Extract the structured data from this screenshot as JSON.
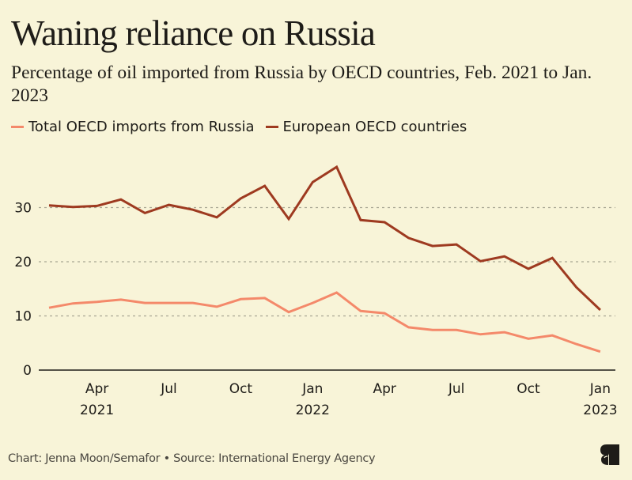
{
  "header": {
    "title": "Waning reliance on Russia",
    "subtitle": "Percentage of oil imported from Russia by OECD countries, Feb. 2021 to Jan. 2023"
  },
  "legend": [
    {
      "label": "Total OECD imports from Russia",
      "color": "#f4896a"
    },
    {
      "label": "European OECD countries",
      "color": "#9e3a20"
    }
  ],
  "footer": {
    "credit": "Chart: Jenna Moon/Semafor • Source: International Energy Agency",
    "logo": "semafor-logo"
  },
  "chart_data": {
    "type": "line",
    "title": "Waning reliance on Russia",
    "subtitle": "Percentage of oil imported from Russia by OECD countries, Feb. 2021 to Jan. 2023",
    "xlabel": "",
    "ylabel": "",
    "x": [
      "Feb 2021",
      "Mar 2021",
      "Apr 2021",
      "May 2021",
      "Jun 2021",
      "Jul 2021",
      "Aug 2021",
      "Sep 2021",
      "Oct 2021",
      "Nov 2021",
      "Dec 2021",
      "Jan 2022",
      "Feb 2022",
      "Mar 2022",
      "Apr 2022",
      "May 2022",
      "Jun 2022",
      "Jul 2022",
      "Aug 2022",
      "Sep 2022",
      "Oct 2022",
      "Nov 2022",
      "Dec 2022",
      "Jan 2023"
    ],
    "series": [
      {
        "name": "Total OECD imports from Russia",
        "color": "#f4896a",
        "values": [
          11.5,
          12.3,
          12.6,
          13.0,
          12.4,
          12.4,
          12.4,
          11.7,
          13.1,
          13.3,
          10.7,
          12.4,
          14.3,
          10.9,
          10.5,
          7.9,
          7.4,
          7.4,
          6.6,
          7.0,
          5.8,
          6.4,
          4.8,
          3.4
        ]
      },
      {
        "name": "European OECD countries",
        "color": "#9e3a20",
        "values": [
          30.4,
          30.1,
          30.3,
          31.5,
          29.0,
          30.5,
          29.6,
          28.2,
          31.7,
          34.0,
          27.9,
          34.7,
          37.5,
          27.7,
          27.3,
          24.4,
          22.9,
          23.2,
          20.1,
          21.0,
          18.7,
          20.7,
          15.3,
          11.1
        ]
      }
    ],
    "yticks": [
      0,
      10,
      20,
      30
    ],
    "ylim": [
      0,
      38
    ],
    "xticks": [
      {
        "at": "Apr 2021",
        "line1": "Apr",
        "line2": "2021"
      },
      {
        "at": "Jul 2021",
        "line1": "Jul",
        "line2": ""
      },
      {
        "at": "Oct 2021",
        "line1": "Oct",
        "line2": ""
      },
      {
        "at": "Jan 2022",
        "line1": "Jan",
        "line2": "2022"
      },
      {
        "at": "Apr 2022",
        "line1": "Apr",
        "line2": ""
      },
      {
        "at": "Jul 2022",
        "line1": "Jul",
        "line2": ""
      },
      {
        "at": "Oct 2022",
        "line1": "Oct",
        "line2": ""
      },
      {
        "at": "Jan 2023",
        "line1": "Jan",
        "line2": "2023"
      }
    ],
    "grid": true,
    "legend_position": "top-left"
  }
}
